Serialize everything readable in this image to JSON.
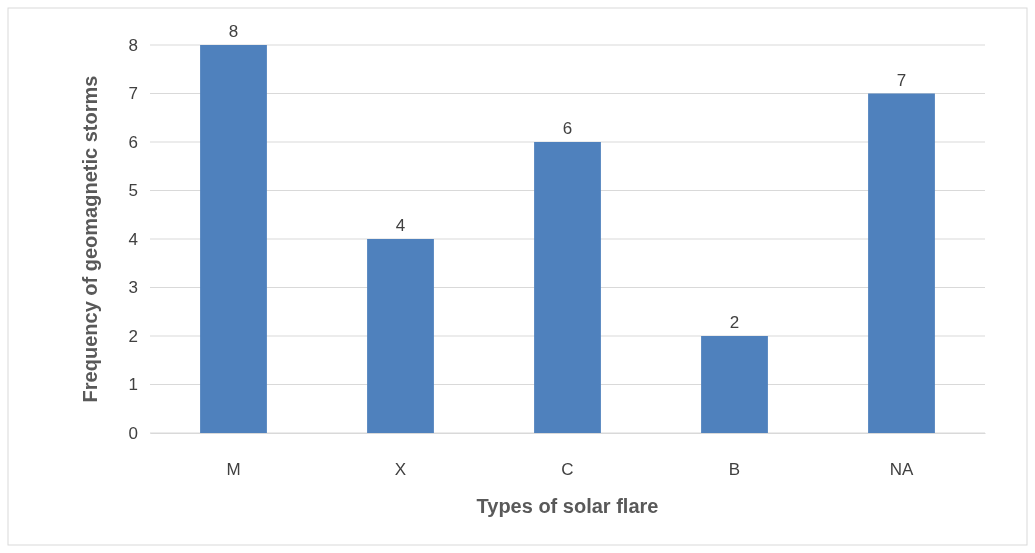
{
  "chart_data": {
    "type": "bar",
    "xlabel": "Types of solar flare",
    "ylabel": "Frequency of geomagnetic storms",
    "categories": [
      "M",
      "X",
      "C",
      "B",
      "NA"
    ],
    "values": [
      8,
      4,
      6,
      2,
      7
    ],
    "color": "#4f81bd",
    "ylim": [
      0,
      8
    ],
    "yticks": [
      0,
      1,
      2,
      3,
      4,
      5,
      6,
      7,
      8
    ],
    "grid": "y",
    "data_labels": true
  }
}
